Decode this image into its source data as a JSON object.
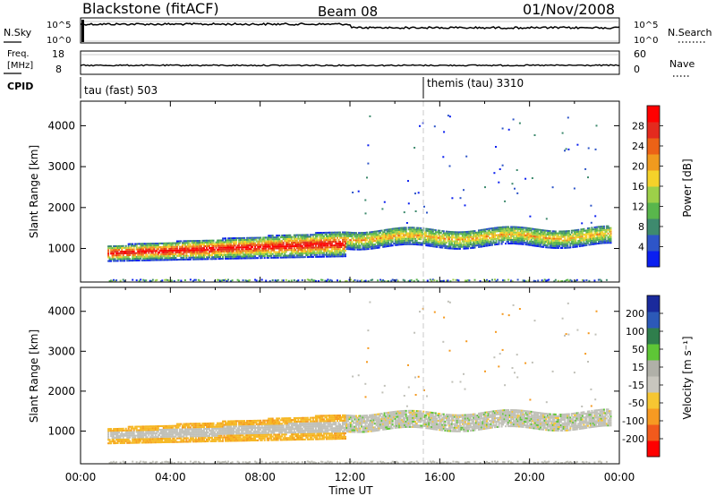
{
  "header": {
    "station": "Blackstone (fitACF)",
    "beam": "Beam 08",
    "date": "01/Nov/2008"
  },
  "top_panels": {
    "nsky": {
      "label": "N.Sky",
      "ticks": [
        "10^5",
        "10^0"
      ]
    },
    "nsearch": {
      "label": "N.Search",
      "ticks": [
        "10^5",
        "10^0"
      ]
    },
    "freq": {
      "label": "Freq.",
      "unit": "[MHz]",
      "ticks": [
        "18",
        "8"
      ]
    },
    "nave": {
      "label": "Nave",
      "ticks": [
        "60",
        "0"
      ]
    },
    "cpid": {
      "label": "CPID",
      "modes": [
        {
          "text": "tau (fast) 503"
        },
        {
          "text": "themis (tau) 3310"
        }
      ]
    }
  },
  "colors": {
    "power_scale": [
      "#0a1ff0",
      "#2e55c8",
      "#3e8a6e",
      "#59b64c",
      "#9dd049",
      "#f5d22a",
      "#f09a1e",
      "#ec6216",
      "#e42a1e",
      "#ff0000"
    ],
    "velocity_scale": [
      "#ff0000",
      "#f15a1c",
      "#f79a22",
      "#f6c632",
      "#c8c6be",
      "#b0b0a8",
      "#5ec636",
      "#2f7e4c",
      "#2c59b8",
      "#1a2a9c"
    ],
    "ground_scatter": "#c0c0b8"
  },
  "chart_data": [
    {
      "type": "heatmap",
      "name": "power",
      "ylabel": "Slant Range [km]",
      "xlabel": "",
      "yticks": [
        "4000",
        "3000",
        "2000",
        "1000"
      ],
      "ylim": [
        180,
        4600
      ],
      "xlim": [
        0,
        24
      ],
      "colorbar": {
        "label": "Power [dB]",
        "ticks": [
          "28",
          "24",
          "20",
          "16",
          "12",
          "8",
          "4"
        ],
        "range": [
          0,
          32
        ]
      }
    },
    {
      "type": "heatmap",
      "name": "velocity",
      "ylabel": "Slant Range [km]",
      "xlabel": "Time UT",
      "yticks": [
        "4000",
        "3000",
        "2000",
        "1000"
      ],
      "ylim": [
        180,
        4600
      ],
      "xlim": [
        0,
        24
      ],
      "xticks": [
        "00:00",
        "04:00",
        "08:00",
        "12:00",
        "16:00",
        "20:00",
        "00:00"
      ],
      "colorbar": {
        "label": "Velocity [m s⁻¹]",
        "ticks": [
          "200",
          "100",
          "50",
          "15",
          "-15",
          "-50",
          "-100",
          "-200"
        ]
      }
    }
  ]
}
